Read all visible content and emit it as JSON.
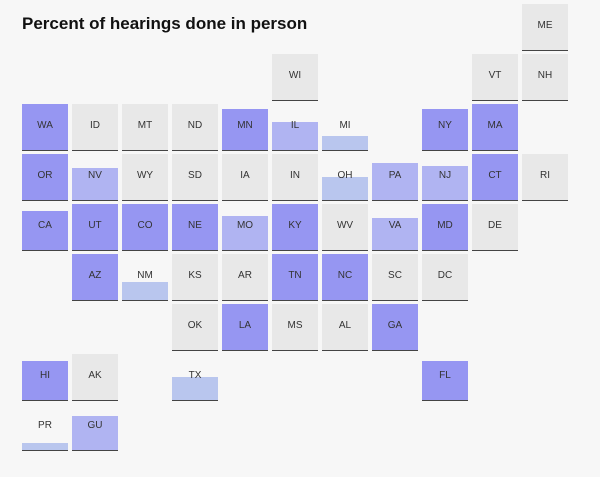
{
  "chart_data": {
    "type": "tile-grid-map",
    "title": "Percent of hearings done in person",
    "colors": {
      "empty": "#e8e8e8",
      "low": "#b9c6ee",
      "mid": "#b0b4f2",
      "high": "#9696f2"
    },
    "tiles": [
      {
        "state": "ME",
        "row": 0,
        "col": 10,
        "pct": 0
      },
      {
        "state": "WI",
        "row": 1,
        "col": 5,
        "pct": 0
      },
      {
        "state": "VT",
        "row": 1,
        "col": 9,
        "pct": 0
      },
      {
        "state": "NH",
        "row": 1,
        "col": 10,
        "pct": 0
      },
      {
        "state": "WA",
        "row": 2,
        "col": 0,
        "pct": 100
      },
      {
        "state": "ID",
        "row": 2,
        "col": 1,
        "pct": 0
      },
      {
        "state": "MT",
        "row": 2,
        "col": 2,
        "pct": 0
      },
      {
        "state": "ND",
        "row": 2,
        "col": 3,
        "pct": 0
      },
      {
        "state": "MN",
        "row": 2,
        "col": 4,
        "pct": 90
      },
      {
        "state": "IL",
        "row": 2,
        "col": 5,
        "pct": 60
      },
      {
        "state": "MI",
        "row": 2,
        "col": 6,
        "pct": 30
      },
      {
        "state": "NY",
        "row": 2,
        "col": 8,
        "pct": 90
      },
      {
        "state": "MA",
        "row": 2,
        "col": 9,
        "pct": 100
      },
      {
        "state": "OR",
        "row": 3,
        "col": 0,
        "pct": 100
      },
      {
        "state": "NV",
        "row": 3,
        "col": 1,
        "pct": 70
      },
      {
        "state": "WY",
        "row": 3,
        "col": 2,
        "pct": 0
      },
      {
        "state": "SD",
        "row": 3,
        "col": 3,
        "pct": 0
      },
      {
        "state": "IA",
        "row": 3,
        "col": 4,
        "pct": 0
      },
      {
        "state": "IN",
        "row": 3,
        "col": 5,
        "pct": 0
      },
      {
        "state": "OH",
        "row": 3,
        "col": 6,
        "pct": 50
      },
      {
        "state": "PA",
        "row": 3,
        "col": 7,
        "pct": 80
      },
      {
        "state": "NJ",
        "row": 3,
        "col": 8,
        "pct": 75
      },
      {
        "state": "CT",
        "row": 3,
        "col": 9,
        "pct": 100
      },
      {
        "state": "RI",
        "row": 3,
        "col": 10,
        "pct": 0
      },
      {
        "state": "CA",
        "row": 4,
        "col": 0,
        "pct": 85
      },
      {
        "state": "UT",
        "row": 4,
        "col": 1,
        "pct": 100
      },
      {
        "state": "CO",
        "row": 4,
        "col": 2,
        "pct": 100
      },
      {
        "state": "NE",
        "row": 4,
        "col": 3,
        "pct": 100
      },
      {
        "state": "MO",
        "row": 4,
        "col": 4,
        "pct": 75
      },
      {
        "state": "KY",
        "row": 4,
        "col": 5,
        "pct": 100
      },
      {
        "state": "WV",
        "row": 4,
        "col": 6,
        "pct": 0
      },
      {
        "state": "VA",
        "row": 4,
        "col": 7,
        "pct": 70
      },
      {
        "state": "MD",
        "row": 4,
        "col": 8,
        "pct": 100
      },
      {
        "state": "DE",
        "row": 4,
        "col": 9,
        "pct": 0
      },
      {
        "state": "AZ",
        "row": 5,
        "col": 1,
        "pct": 100
      },
      {
        "state": "NM",
        "row": 5,
        "col": 2,
        "pct": 40
      },
      {
        "state": "KS",
        "row": 5,
        "col": 3,
        "pct": 0
      },
      {
        "state": "AR",
        "row": 5,
        "col": 4,
        "pct": 0
      },
      {
        "state": "TN",
        "row": 5,
        "col": 5,
        "pct": 100
      },
      {
        "state": "NC",
        "row": 5,
        "col": 6,
        "pct": 100
      },
      {
        "state": "SC",
        "row": 5,
        "col": 7,
        "pct": 0
      },
      {
        "state": "DC",
        "row": 5,
        "col": 8,
        "pct": 0
      },
      {
        "state": "OK",
        "row": 6,
        "col": 3,
        "pct": 0
      },
      {
        "state": "LA",
        "row": 6,
        "col": 4,
        "pct": 100
      },
      {
        "state": "MS",
        "row": 6,
        "col": 5,
        "pct": 0
      },
      {
        "state": "AL",
        "row": 6,
        "col": 6,
        "pct": 0
      },
      {
        "state": "GA",
        "row": 6,
        "col": 7,
        "pct": 100
      },
      {
        "state": "HI",
        "row": 7,
        "col": 0,
        "pct": 85
      },
      {
        "state": "AK",
        "row": 7,
        "col": 1,
        "pct": 0
      },
      {
        "state": "TX",
        "row": 7,
        "col": 3,
        "pct": 50
      },
      {
        "state": "FL",
        "row": 7,
        "col": 8,
        "pct": 85
      },
      {
        "state": "PR",
        "row": 8,
        "col": 0,
        "pct": 15
      },
      {
        "state": "GU",
        "row": 8,
        "col": 1,
        "pct": 75
      }
    ]
  }
}
